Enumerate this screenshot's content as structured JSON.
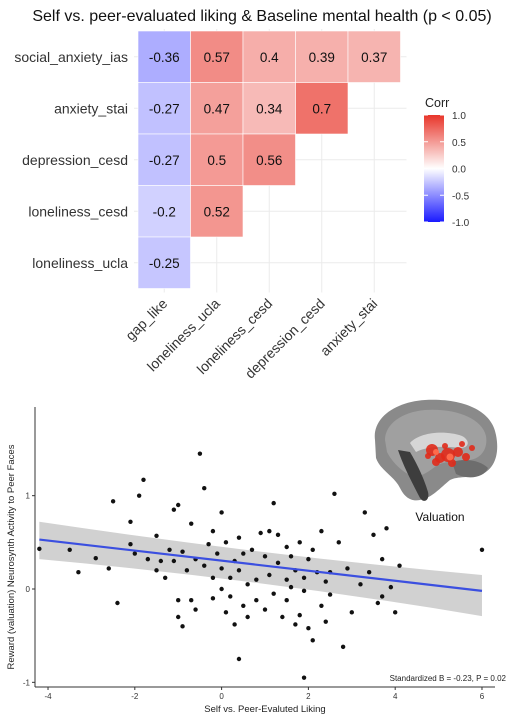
{
  "chart_data": [
    {
      "type": "heatmap",
      "title": "Self vs. peer-evaluated liking & Baseline mental health (p < 0.05)",
      "rows": [
        "social_anxiety_ias",
        "anxiety_stai",
        "depression_cesd",
        "loneliness_cesd",
        "loneliness_ucla"
      ],
      "columns": [
        "gap_like",
        "loneliness_ucla",
        "loneliness_cesd",
        "depression_cesd",
        "anxiety_stai"
      ],
      "cells": [
        {
          "row": "social_anxiety_ias",
          "col": "gap_like",
          "value": -0.36,
          "label": "-0.36"
        },
        {
          "row": "social_anxiety_ias",
          "col": "loneliness_ucla",
          "value": 0.57,
          "label": "0.57"
        },
        {
          "row": "social_anxiety_ias",
          "col": "loneliness_cesd",
          "value": 0.4,
          "label": "0.4"
        },
        {
          "row": "social_anxiety_ias",
          "col": "depression_cesd",
          "value": 0.39,
          "label": "0.39"
        },
        {
          "row": "social_anxiety_ias",
          "col": "anxiety_stai",
          "value": 0.37,
          "label": "0.37"
        },
        {
          "row": "anxiety_stai",
          "col": "gap_like",
          "value": -0.27,
          "label": "-0.27"
        },
        {
          "row": "anxiety_stai",
          "col": "loneliness_ucla",
          "value": 0.47,
          "label": "0.47"
        },
        {
          "row": "anxiety_stai",
          "col": "loneliness_cesd",
          "value": 0.34,
          "label": "0.34"
        },
        {
          "row": "anxiety_stai",
          "col": "depression_cesd",
          "value": 0.7,
          "label": "0.7"
        },
        {
          "row": "depression_cesd",
          "col": "gap_like",
          "value": -0.27,
          "label": "-0.27"
        },
        {
          "row": "depression_cesd",
          "col": "loneliness_ucla",
          "value": 0.5,
          "label": "0.5"
        },
        {
          "row": "depression_cesd",
          "col": "loneliness_cesd",
          "value": 0.56,
          "label": "0.56"
        },
        {
          "row": "loneliness_cesd",
          "col": "gap_like",
          "value": -0.2,
          "label": "-0.2"
        },
        {
          "row": "loneliness_cesd",
          "col": "loneliness_ucla",
          "value": 0.52,
          "label": "0.52"
        },
        {
          "row": "loneliness_ucla",
          "col": "gap_like",
          "value": -0.25,
          "label": "-0.25"
        }
      ],
      "legend": {
        "title": "Corr",
        "ticks": [
          "1.0",
          "0.5",
          "0.0",
          "-0.5",
          "-1.0"
        ],
        "range": [
          -1,
          1
        ],
        "colors": {
          "low": "#1a1aff",
          "mid": "#ffffff",
          "high": "#e8352a"
        }
      }
    },
    {
      "type": "scatter",
      "xlabel": "Self vs. Peer-Evaluted Liking",
      "ylabel": "Reward (valuation) Neurosynth Activity to Peer Faces",
      "xlim": [
        -4.3,
        6.3
      ],
      "ylim": [
        -1.05,
        1.95
      ],
      "x_ticks": [
        "-4",
        "-2",
        "0",
        "2",
        "4",
        "6"
      ],
      "y_ticks": [
        "-1",
        "0",
        "1"
      ],
      "point_color": "#111111",
      "line_color": "#3b4fe0",
      "band_color": "#c9c9c9",
      "fit": {
        "x": [
          -4.2,
          6.0
        ],
        "y": [
          0.53,
          -0.02
        ]
      },
      "annotation": "Standardized B = -0.23, P = 0.02",
      "inset_label": "Valuation",
      "points": [
        [
          -4.2,
          0.43
        ],
        [
          -3.5,
          0.42
        ],
        [
          -3.3,
          0.18
        ],
        [
          -2.9,
          0.33
        ],
        [
          -2.6,
          0.22
        ],
        [
          -2.5,
          0.94
        ],
        [
          -2.4,
          -0.15
        ],
        [
          -2.1,
          0.48
        ],
        [
          -2.0,
          0.38
        ],
        [
          -1.9,
          1.0
        ],
        [
          -1.8,
          1.17
        ],
        [
          -1.7,
          0.32
        ],
        [
          -1.5,
          0.57
        ],
        [
          -1.5,
          0.2
        ],
        [
          -1.4,
          0.3
        ],
        [
          -1.3,
          0.12
        ],
        [
          -1.2,
          0.42
        ],
        [
          -1.1,
          0.85
        ],
        [
          -1.1,
          0.3
        ],
        [
          -1.0,
          0.9
        ],
        [
          -1.0,
          -0.3
        ],
        [
          -1.0,
          -0.12
        ],
        [
          -0.9,
          0.4
        ],
        [
          -0.9,
          -0.4
        ],
        [
          -0.8,
          0.2
        ],
        [
          -0.7,
          0.7
        ],
        [
          -0.6,
          0.32
        ],
        [
          -0.6,
          -0.22
        ],
        [
          -0.5,
          1.45
        ],
        [
          -0.4,
          1.08
        ],
        [
          -0.4,
          0.25
        ],
        [
          -0.3,
          0.48
        ],
        [
          -0.2,
          -0.1
        ],
        [
          -0.2,
          0.12
        ],
        [
          -0.1,
          0.38
        ],
        [
          0.0,
          0.82
        ],
        [
          0.0,
          0.22
        ],
        [
          0.0,
          0.0
        ],
        [
          0.1,
          0.5
        ],
        [
          0.1,
          -0.25
        ],
        [
          0.2,
          0.12
        ],
        [
          0.2,
          -0.08
        ],
        [
          0.3,
          0.3
        ],
        [
          0.3,
          -0.38
        ],
        [
          0.4,
          0.55
        ],
        [
          0.4,
          0.2
        ],
        [
          0.5,
          -0.18
        ],
        [
          0.5,
          0.38
        ],
        [
          0.6,
          0.05
        ],
        [
          0.6,
          -0.3
        ],
        [
          0.7,
          0.42
        ],
        [
          0.8,
          0.1
        ],
        [
          0.8,
          -0.12
        ],
        [
          0.9,
          0.6
        ],
        [
          1.0,
          0.35
        ],
        [
          1.0,
          -0.22
        ],
        [
          1.1,
          0.15
        ],
        [
          1.1,
          0.62
        ],
        [
          1.2,
          0.92
        ],
        [
          1.2,
          -0.05
        ],
        [
          1.3,
          0.28
        ],
        [
          1.3,
          0.58
        ],
        [
          1.4,
          -0.3
        ],
        [
          1.5,
          0.1
        ],
        [
          1.5,
          0.45
        ],
        [
          1.5,
          -0.12
        ],
        [
          1.6,
          0.35
        ],
        [
          1.6,
          0.02
        ],
        [
          1.7,
          -0.38
        ],
        [
          1.7,
          0.2
        ],
        [
          1.8,
          0.5
        ],
        [
          1.8,
          -0.28
        ],
        [
          1.9,
          0.12
        ],
        [
          1.9,
          -0.02
        ],
        [
          2.0,
          -0.42
        ],
        [
          2.0,
          0.32
        ],
        [
          2.1,
          -0.55
        ],
        [
          2.1,
          0.42
        ],
        [
          2.2,
          0.18
        ],
        [
          2.3,
          -0.18
        ],
        [
          2.3,
          0.62
        ],
        [
          2.4,
          -0.35
        ],
        [
          2.5,
          0.18
        ],
        [
          2.5,
          -0.06
        ],
        [
          2.6,
          1.02
        ],
        [
          2.7,
          0.5
        ],
        [
          2.8,
          -0.62
        ],
        [
          2.9,
          0.22
        ],
        [
          3.0,
          -0.25
        ],
        [
          3.2,
          0.05
        ],
        [
          3.3,
          0.82
        ],
        [
          3.4,
          0.18
        ],
        [
          3.5,
          0.58
        ],
        [
          3.6,
          -0.15
        ],
        [
          3.7,
          0.32
        ],
        [
          3.7,
          -0.08
        ],
        [
          3.8,
          0.65
        ],
        [
          3.9,
          0.02
        ],
        [
          4.0,
          -0.25
        ],
        [
          4.1,
          0.25
        ],
        [
          6.0,
          0.42
        ],
        [
          0.4,
          -0.75
        ],
        [
          1.9,
          -0.95
        ],
        [
          -0.2,
          0.62
        ],
        [
          -2.1,
          0.72
        ],
        [
          -0.7,
          -0.12
        ],
        [
          2.4,
          0.08
        ]
      ]
    }
  ]
}
